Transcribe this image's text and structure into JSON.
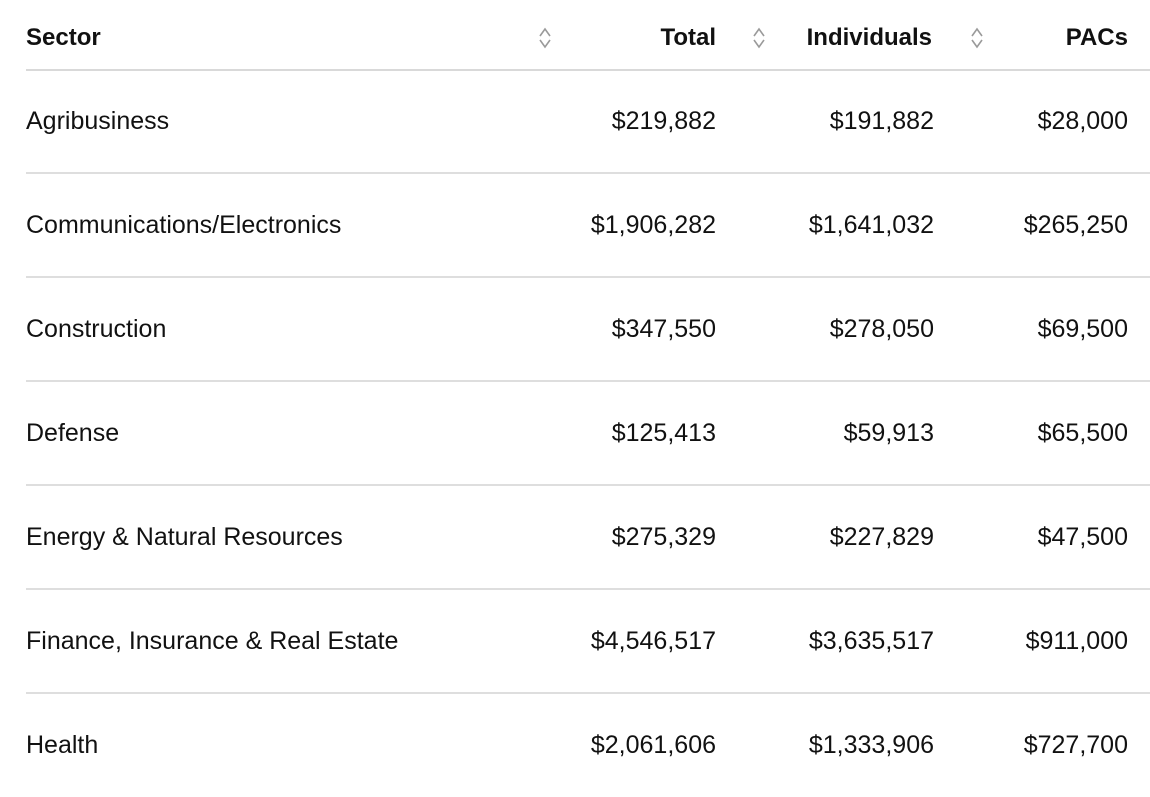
{
  "table": {
    "headers": {
      "sector": "Sector",
      "total": "Total",
      "individuals": "Individuals",
      "pacs": "PACs"
    },
    "sort_icon": "sort-updown-icon",
    "rows": [
      {
        "sector": "Agribusiness",
        "total": "$219,882",
        "individuals": "$191,882",
        "pacs": "$28,000"
      },
      {
        "sector": "Communications/Electronics",
        "total": "$1,906,282",
        "individuals": "$1,641,032",
        "pacs": "$265,250"
      },
      {
        "sector": "Construction",
        "total": "$347,550",
        "individuals": "$278,050",
        "pacs": "$69,500"
      },
      {
        "sector": "Defense",
        "total": "$125,413",
        "individuals": "$59,913",
        "pacs": "$65,500"
      },
      {
        "sector": "Energy & Natural Resources",
        "total": "$275,329",
        "individuals": "$227,829",
        "pacs": "$47,500"
      },
      {
        "sector": "Finance, Insurance & Real Estate",
        "total": "$4,546,517",
        "individuals": "$3,635,517",
        "pacs": "$911,000"
      },
      {
        "sector": "Health",
        "total": "$2,061,606",
        "individuals": "$1,333,906",
        "pacs": "$727,700"
      }
    ]
  },
  "colors": {
    "text": "#111111",
    "divider": "#dedede",
    "sort_icon": "#9a9a9a"
  }
}
